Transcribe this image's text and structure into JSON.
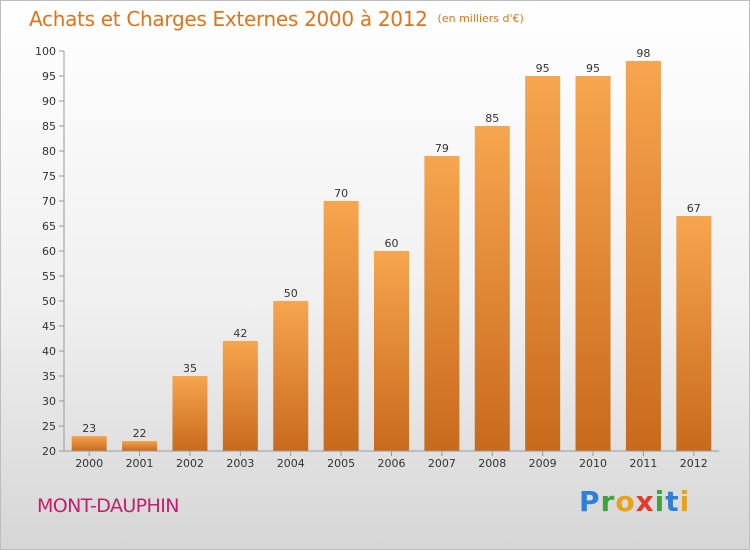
{
  "title": "Achats et Charges Externes 2000 à 2012",
  "subtitle": "(en milliers d'€)",
  "location": "MONT-DAUPHIN",
  "logo": {
    "p": "P",
    "r": "r",
    "o": "o",
    "x": "x",
    "i": "i",
    "t": "t",
    "i2": "i"
  },
  "colors": {
    "bar_top": "#f7a54f",
    "bar_bottom": "#c86a1c",
    "title": "#e0731b",
    "location": "#c2206e"
  },
  "chart_data": {
    "type": "bar",
    "title": "Achats et Charges Externes 2000 à 2012",
    "subtitle": "(en milliers d'€)",
    "xlabel": "",
    "ylabel": "",
    "categories": [
      "2000",
      "2001",
      "2002",
      "2003",
      "2004",
      "2005",
      "2006",
      "2007",
      "2008",
      "2009",
      "2010",
      "2011",
      "2012"
    ],
    "values": [
      23,
      22,
      35,
      42,
      50,
      70,
      60,
      79,
      85,
      95,
      95,
      98,
      67
    ],
    "ylim": [
      20,
      100
    ],
    "yticks": [
      20,
      25,
      30,
      35,
      40,
      45,
      50,
      55,
      60,
      65,
      70,
      75,
      80,
      85,
      90,
      95,
      100
    ],
    "grid": false,
    "legend": "none"
  }
}
